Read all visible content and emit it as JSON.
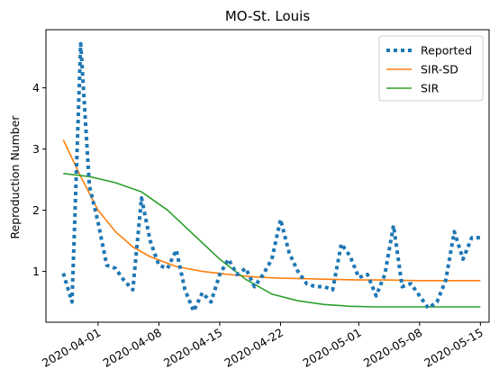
{
  "chart_data": {
    "type": "line",
    "title": "MO-St. Louis",
    "xlabel": "",
    "ylabel": "Reproduction Number",
    "x_ticks": [
      "2020-04-01",
      "2020-04-08",
      "2020-04-15",
      "2020-04-22",
      "2020-05-01",
      "2020-05-08",
      "2020-05-15"
    ],
    "y_ticks": [
      1,
      2,
      3,
      4
    ],
    "x_range": [
      "2020-03-26",
      "2020-05-16"
    ],
    "ylim": [
      0.17,
      4.95
    ],
    "grid": false,
    "legend_position": "top-right",
    "series": [
      {
        "name": "Reported",
        "style": "dotted",
        "color": "#1f77b4",
        "x": [
          "2020-03-28",
          "2020-03-29",
          "2020-03-30",
          "2020-03-31",
          "2020-04-01",
          "2020-04-02",
          "2020-04-03",
          "2020-04-04",
          "2020-04-05",
          "2020-04-06",
          "2020-04-07",
          "2020-04-08",
          "2020-04-09",
          "2020-04-10",
          "2020-04-11",
          "2020-04-12",
          "2020-04-13",
          "2020-04-14",
          "2020-04-15",
          "2020-04-16",
          "2020-04-17",
          "2020-04-18",
          "2020-04-19",
          "2020-04-20",
          "2020-04-21",
          "2020-04-22",
          "2020-04-23",
          "2020-04-24",
          "2020-04-25",
          "2020-04-26",
          "2020-04-27",
          "2020-04-28",
          "2020-04-29",
          "2020-04-30",
          "2020-05-01",
          "2020-05-02",
          "2020-05-03",
          "2020-05-04",
          "2020-05-05",
          "2020-05-06",
          "2020-05-07",
          "2020-05-08",
          "2020-05-09",
          "2020-05-10",
          "2020-05-11",
          "2020-05-12",
          "2020-05-13",
          "2020-05-14",
          "2020-05-15"
        ],
        "y": [
          0.97,
          0.5,
          4.72,
          2.4,
          1.8,
          1.1,
          1.05,
          0.85,
          0.7,
          2.2,
          1.5,
          1.1,
          1.05,
          1.35,
          0.7,
          0.35,
          0.65,
          0.5,
          0.95,
          1.2,
          0.95,
          1.05,
          0.75,
          0.95,
          1.2,
          1.85,
          1.3,
          1.0,
          0.8,
          0.75,
          0.75,
          0.7,
          1.45,
          1.25,
          0.9,
          0.95,
          0.6,
          0.95,
          1.75,
          0.75,
          0.8,
          0.6,
          0.4,
          0.5,
          0.85,
          1.65,
          1.2,
          1.55,
          1.55
        ]
      },
      {
        "name": "SIR-SD",
        "style": "solid",
        "color": "#ff7f0e",
        "x": [
          "2020-03-28",
          "2020-03-30",
          "2020-04-01",
          "2020-04-03",
          "2020-04-05",
          "2020-04-07",
          "2020-04-10",
          "2020-04-13",
          "2020-04-16",
          "2020-04-19",
          "2020-04-22",
          "2020-04-25",
          "2020-04-28",
          "2020-05-01",
          "2020-05-04",
          "2020-05-08",
          "2020-05-12",
          "2020-05-15"
        ],
        "y": [
          3.15,
          2.55,
          2.0,
          1.65,
          1.4,
          1.24,
          1.08,
          1.0,
          0.95,
          0.91,
          0.89,
          0.88,
          0.87,
          0.86,
          0.86,
          0.85,
          0.85,
          0.85
        ]
      },
      {
        "name": "SIR",
        "style": "solid",
        "color": "#2ca02c",
        "x": [
          "2020-03-28",
          "2020-03-31",
          "2020-04-03",
          "2020-04-06",
          "2020-04-09",
          "2020-04-12",
          "2020-04-15",
          "2020-04-18",
          "2020-04-21",
          "2020-04-24",
          "2020-04-27",
          "2020-04-30",
          "2020-05-03",
          "2020-05-06",
          "2020-05-09",
          "2020-05-12",
          "2020-05-15"
        ],
        "y": [
          2.6,
          2.55,
          2.45,
          2.3,
          2.0,
          1.6,
          1.2,
          0.87,
          0.63,
          0.52,
          0.46,
          0.43,
          0.42,
          0.42,
          0.42,
          0.42,
          0.42
        ]
      }
    ]
  }
}
